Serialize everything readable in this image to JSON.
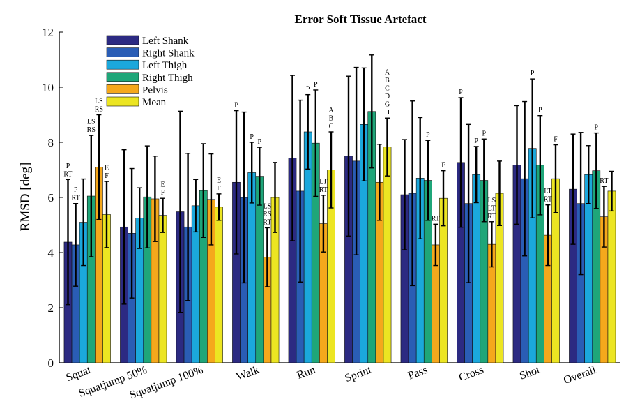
{
  "chart_data": {
    "type": "bar",
    "title": "Error Soft Tissue Artefact",
    "xlabel": "",
    "ylabel": "RMSD [deg]",
    "ylim": [
      0,
      12
    ],
    "yticks": [
      "0",
      "2",
      "4",
      "6",
      "8",
      "10",
      "12"
    ],
    "grid": false,
    "legend_position": "top-left",
    "categories": [
      "Squat",
      "Squatjump 50%",
      "Squatjump 100%",
      "Walk",
      "Run",
      "Sprint",
      "Pass",
      "Cross",
      "Shot",
      "Overall"
    ],
    "series": [
      {
        "name": "Left Shank",
        "color": "#2c2a82",
        "values": [
          4.38,
          4.93,
          5.48,
          6.55,
          7.43,
          7.5,
          6.1,
          7.27,
          7.18,
          6.3
        ],
        "errors": [
          2.27,
          2.8,
          3.65,
          2.6,
          3.0,
          2.9,
          2.0,
          2.35,
          2.15,
          2.0
        ]
      },
      {
        "name": "Right Shank",
        "color": "#2a5db5",
        "values": [
          4.28,
          4.7,
          4.93,
          6.0,
          6.23,
          7.32,
          6.15,
          5.78,
          6.68,
          5.78
        ],
        "errors": [
          1.5,
          2.35,
          2.67,
          3.1,
          3.3,
          3.4,
          3.35,
          2.87,
          2.8,
          2.58
        ]
      },
      {
        "name": "Left Thigh",
        "color": "#1ba8dc",
        "values": [
          5.1,
          5.25,
          5.7,
          6.9,
          8.38,
          8.65,
          6.7,
          6.83,
          7.78,
          6.83
        ],
        "errors": [
          1.57,
          1.1,
          0.95,
          1.1,
          1.35,
          2.05,
          2.2,
          1.02,
          2.52,
          1.05
        ]
      },
      {
        "name": "Right Thigh",
        "color": "#1fa679",
        "values": [
          6.05,
          6.02,
          6.25,
          6.77,
          7.97,
          9.12,
          6.62,
          6.62,
          7.17,
          6.97
        ],
        "errors": [
          2.2,
          1.85,
          1.7,
          1.05,
          1.93,
          2.05,
          1.45,
          1.5,
          1.8,
          1.37
        ]
      },
      {
        "name": "Pelvis",
        "color": "#f5a81c",
        "values": [
          7.1,
          5.95,
          5.93,
          3.83,
          5.05,
          6.55,
          4.28,
          4.3,
          4.63,
          5.3
        ],
        "errors": [
          1.9,
          1.55,
          1.65,
          1.07,
          1.03,
          1.38,
          0.75,
          0.82,
          1.1,
          1.1
        ]
      },
      {
        "name": "Mean",
        "color": "#ece522",
        "values": [
          5.38,
          5.35,
          5.65,
          6.0,
          7.0,
          7.83,
          5.97,
          6.15,
          6.68,
          6.23
        ],
        "errors": [
          1.2,
          0.62,
          0.48,
          1.27,
          1.38,
          1.05,
          1.0,
          1.17,
          1.23,
          0.72
        ]
      }
    ],
    "annotations": [
      {
        "category": "Squat",
        "series": "Left Shank",
        "lines": [
          "P",
          "RT"
        ]
      },
      {
        "category": "Squat",
        "series": "Right Shank",
        "lines": [
          "P",
          "RT"
        ]
      },
      {
        "category": "Squat",
        "series": "Right Thigh",
        "lines": [
          "LS",
          "RS"
        ]
      },
      {
        "category": "Squat",
        "series": "Pelvis",
        "lines": [
          "LS",
          "RS"
        ]
      },
      {
        "category": "Squat",
        "series": "Mean",
        "lines": [
          "E",
          "F"
        ]
      },
      {
        "category": "Squatjump 50%",
        "series": "Mean",
        "lines": [
          "E",
          "F"
        ]
      },
      {
        "category": "Squatjump 100%",
        "series": "Mean",
        "lines": [
          "E",
          "F"
        ]
      },
      {
        "category": "Walk",
        "series": "Left Shank",
        "lines": [
          "P"
        ]
      },
      {
        "category": "Walk",
        "series": "Left Thigh",
        "lines": [
          "P"
        ]
      },
      {
        "category": "Walk",
        "series": "Right Thigh",
        "lines": [
          "P"
        ]
      },
      {
        "category": "Walk",
        "series": "Pelvis",
        "lines": [
          "LS",
          "RS",
          "RT"
        ]
      },
      {
        "category": "Run",
        "series": "Left Thigh",
        "lines": [
          "P"
        ]
      },
      {
        "category": "Run",
        "series": "Right Thigh",
        "lines": [
          "P"
        ]
      },
      {
        "category": "Run",
        "series": "Pelvis",
        "lines": [
          "LT",
          "RT"
        ]
      },
      {
        "category": "Run",
        "series": "Mean",
        "lines": [
          "A",
          "B",
          "C"
        ]
      },
      {
        "category": "Sprint",
        "series": "Mean",
        "lines": [
          "A",
          "B",
          "C",
          "D",
          "G",
          "H"
        ]
      },
      {
        "category": "Pass",
        "series": "Right Thigh",
        "lines": [
          "P"
        ]
      },
      {
        "category": "Pass",
        "series": "Pelvis",
        "lines": [
          "RT"
        ]
      },
      {
        "category": "Pass",
        "series": "Mean",
        "lines": [
          "F"
        ]
      },
      {
        "category": "Cross",
        "series": "Left Shank",
        "lines": [
          "P"
        ]
      },
      {
        "category": "Cross",
        "series": "Left Thigh",
        "lines": [
          "P"
        ]
      },
      {
        "category": "Cross",
        "series": "Right Thigh",
        "lines": [
          "P"
        ]
      },
      {
        "category": "Cross",
        "series": "Pelvis",
        "lines": [
          "LS",
          "LT",
          "RT"
        ]
      },
      {
        "category": "Shot",
        "series": "Left Thigh",
        "lines": [
          "P"
        ]
      },
      {
        "category": "Shot",
        "series": "Right Thigh",
        "lines": [
          "P"
        ]
      },
      {
        "category": "Shot",
        "series": "Pelvis",
        "lines": [
          "LT",
          "RT"
        ]
      },
      {
        "category": "Shot",
        "series": "Mean",
        "lines": [
          "F"
        ]
      },
      {
        "category": "Overall",
        "series": "Right Thigh",
        "lines": [
          "P"
        ]
      },
      {
        "category": "Overall",
        "series": "Pelvis",
        "lines": [
          "RT"
        ]
      }
    ]
  }
}
